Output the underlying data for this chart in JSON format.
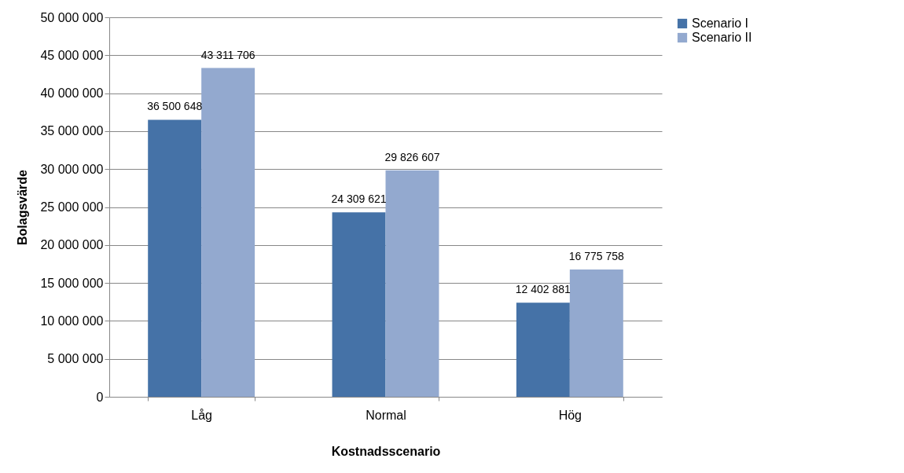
{
  "chart_data": {
    "type": "bar",
    "xlabel": "Kostnadsscenario",
    "ylabel": "Bolagsvärde",
    "categories": [
      "Låg",
      "Normal",
      "Hög"
    ],
    "series": [
      {
        "name": "Scenario I",
        "color": "#4572a7",
        "values": [
          36500648,
          24309621,
          12402881
        ],
        "value_labels": [
          "36 500 648",
          "24 309 621",
          "12 402 881"
        ]
      },
      {
        "name": "Scenario II",
        "color": "#93a9cf",
        "values": [
          43311706,
          29826607,
          16775758
        ],
        "value_labels": [
          "43 311 706",
          "29 826 607",
          "16 775 758"
        ]
      }
    ],
    "ylim": [
      0,
      50000000
    ],
    "yticks": [
      {
        "value": 0,
        "label": "0"
      },
      {
        "value": 5000000,
        "label": "5 000 000"
      },
      {
        "value": 10000000,
        "label": "10 000 000"
      },
      {
        "value": 15000000,
        "label": "15 000 000"
      },
      {
        "value": 20000000,
        "label": "20 000 000"
      },
      {
        "value": 25000000,
        "label": "25 000 000"
      },
      {
        "value": 30000000,
        "label": "30 000 000"
      },
      {
        "value": 35000000,
        "label": "35 000 000"
      },
      {
        "value": 40000000,
        "label": "40 000 000"
      },
      {
        "value": 45000000,
        "label": "45 000 000"
      },
      {
        "value": 50000000,
        "label": "50 000 000"
      }
    ],
    "grid": "y",
    "legend": "right"
  }
}
